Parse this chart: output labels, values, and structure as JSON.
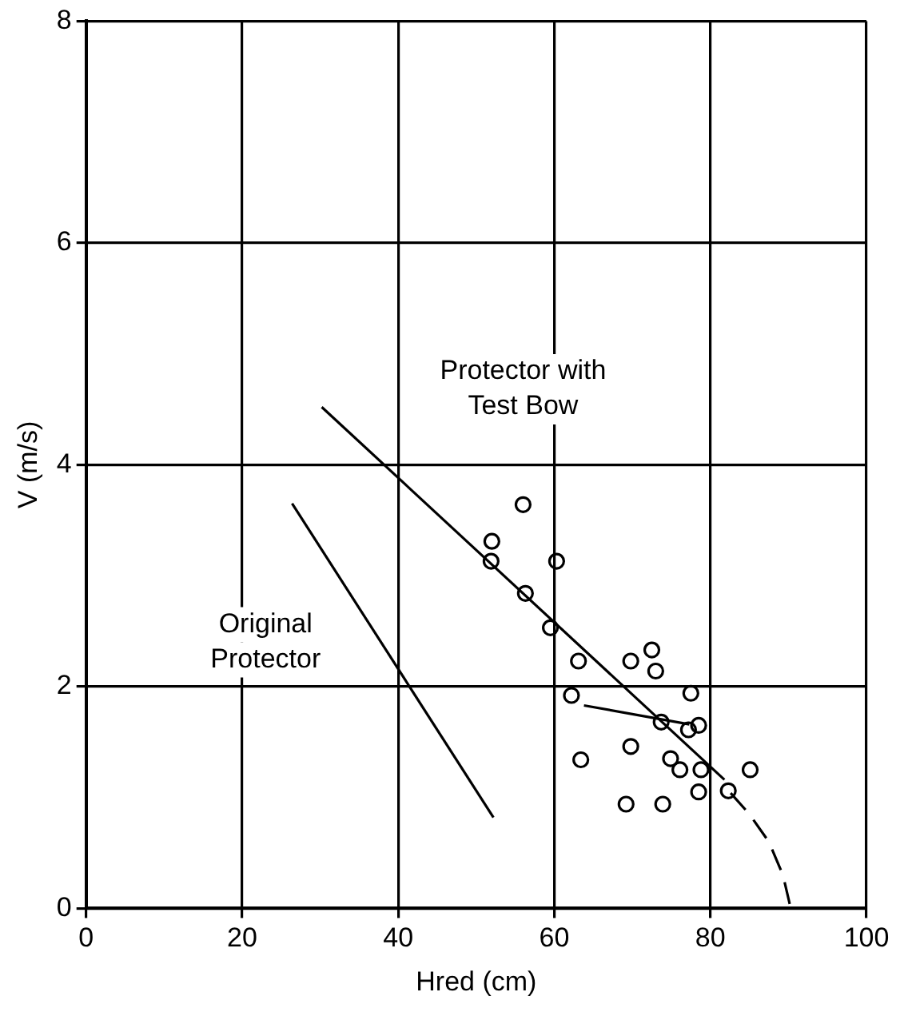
{
  "chart_data": {
    "type": "scatter",
    "xlabel": "Hred (cm)",
    "ylabel": "V (m/s)",
    "xlim": [
      0,
      100
    ],
    "xticks": [
      0,
      20,
      40,
      60,
      80,
      100
    ],
    "ylim": [
      0,
      8
    ],
    "yticks": [
      0,
      2,
      4,
      6,
      8
    ],
    "grid": true,
    "legend": false,
    "series": [
      {
        "color": "#000000",
        "marker": "circle",
        "x": [
          56.0,
          52.0,
          51.9,
          60.3,
          56.3,
          59.5,
          63.1,
          69.8,
          72.5,
          73.0,
          62.2,
          77.5,
          73.7,
          77.2,
          78.5,
          63.4,
          69.8,
          74.9,
          76.1,
          78.8,
          85.1,
          78.5,
          82.3,
          69.2,
          73.9
        ],
        "values": [
          3.64,
          3.31,
          3.13,
          3.13,
          2.84,
          2.53,
          2.23,
          2.23,
          2.33,
          2.14,
          1.92,
          1.94,
          1.68,
          1.61,
          1.65,
          1.34,
          1.46,
          1.35,
          1.25,
          1.25,
          1.25,
          1.05,
          1.06,
          0.94,
          0.94
        ]
      },
      {
        "type": "line",
        "color": "#000000",
        "marker": "none",
        "line_style": "solid",
        "x": [
          26.4,
          52.2
        ],
        "values": [
          3.65,
          0.82
        ]
      },
      {
        "type": "line",
        "color": "#000000",
        "marker": "none",
        "line_style": "solid",
        "x": [
          30.2,
          81.8
        ],
        "values": [
          4.52,
          1.16
        ]
      },
      {
        "type": "line",
        "color": "#000000",
        "marker": "none",
        "line_style": "dashed",
        "x": [
          82.6,
          85,
          87.5,
          89.3,
          90.3
        ],
        "values": [
          1.04,
          0.85,
          0.6,
          0.3,
          0
        ]
      },
      {
        "type": "line",
        "color": "#000000",
        "marker": "none",
        "line_style": "solid",
        "x": [
          63.8,
          77.3
        ],
        "values": [
          1.83,
          1.66
        ]
      }
    ],
    "annotations": [
      "Protector with Test Bow",
      "Original Protector"
    ]
  }
}
